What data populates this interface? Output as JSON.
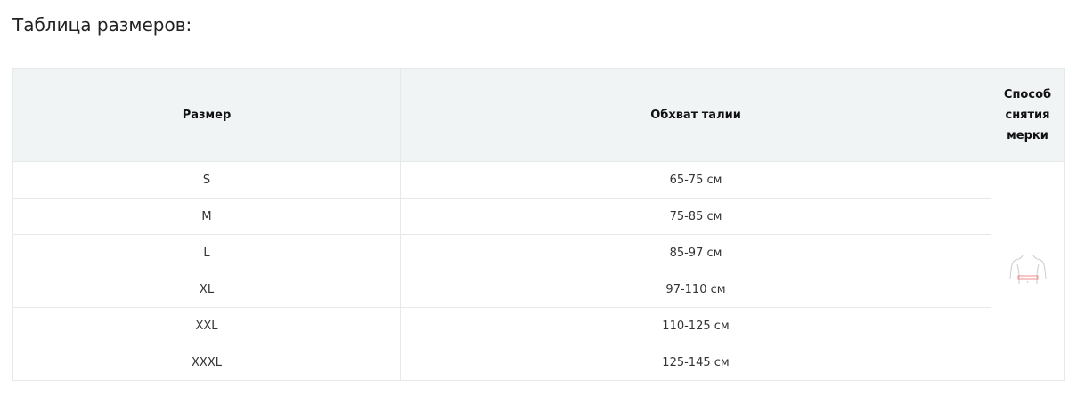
{
  "title": "Таблица размеров:",
  "headers": {
    "size": "Размер",
    "waist": "Обхват талии",
    "method": "Способ снятия мерки"
  },
  "rows": [
    {
      "size": "S",
      "waist": "65-75 см"
    },
    {
      "size": "M",
      "waist": "75-85 см"
    },
    {
      "size": "L",
      "waist": "85-97 см"
    },
    {
      "size": "XL",
      "waist": "97-110 см"
    },
    {
      "size": "XXL",
      "waist": "110-125 см"
    },
    {
      "size": "XXXL",
      "waist": "125-145 см"
    }
  ],
  "icon": "waist-measurement-icon",
  "colors": {
    "header_bg": "#f1f4f5",
    "border": "#e6e9ea",
    "measure_line": "#f08a8a"
  }
}
